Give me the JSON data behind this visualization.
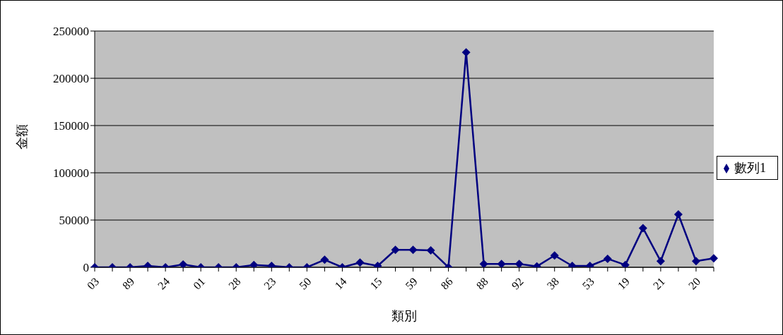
{
  "chart_data": {
    "type": "line",
    "xlabel": "類別",
    "ylabel": "金額",
    "categories": [
      "03",
      null,
      "89",
      null,
      "24",
      null,
      "01",
      null,
      "28",
      null,
      "23",
      null,
      "50",
      null,
      "14",
      null,
      "15",
      null,
      "59",
      null,
      "86",
      null,
      "88",
      null,
      "92",
      null,
      "38",
      null,
      "53",
      null,
      "19",
      null,
      "21",
      null,
      "20",
      null
    ],
    "series": [
      {
        "name": "數列1",
        "color": "#000080",
        "values": [
          0,
          0,
          0,
          1500,
          0,
          3000,
          0,
          0,
          0,
          2500,
          1500,
          0,
          0,
          8000,
          0,
          5000,
          1500,
          18500,
          18500,
          18000,
          0,
          227500,
          3500,
          3500,
          3500,
          1000,
          12500,
          1500,
          1500,
          9000,
          2500,
          41500,
          6500,
          56000,
          6500,
          9500
        ]
      }
    ],
    "ylim": [
      0,
      250000
    ],
    "yticks": [
      0,
      50000,
      100000,
      150000,
      200000,
      250000
    ],
    "grid": "y",
    "legend": "right",
    "marker": "diamond",
    "line_style": "solid"
  }
}
